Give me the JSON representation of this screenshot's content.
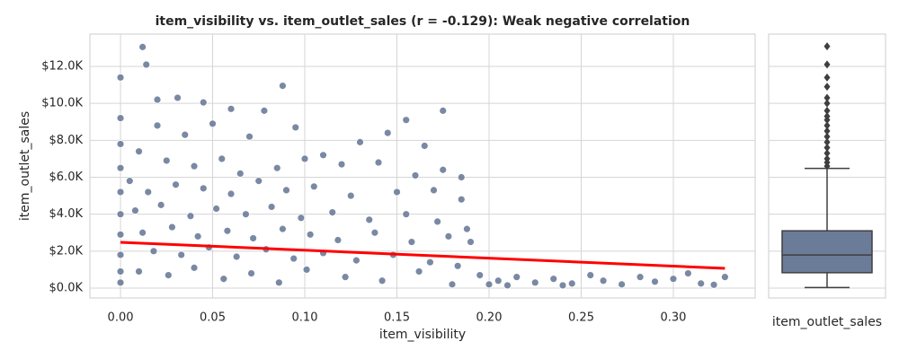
{
  "chart_data": [
    {
      "type": "scatter",
      "title": "item_visibility vs. item_outlet_sales (r = -0.129): Weak negative correlation",
      "x_label": "item_visibility",
      "y_label": "item_outlet_sales",
      "xlim": [
        -0.0166,
        0.3444
      ],
      "ylim": [
        -534,
        13748
      ],
      "xticks": [
        {
          "value": 0,
          "label": "0.00"
        },
        0.05,
        {
          "value": 0.1,
          "label": "0.10"
        },
        0.15,
        {
          "value": 0.2,
          "label": "0.20"
        },
        0.25,
        {
          "value": 0.3,
          "label": "0.30"
        }
      ],
      "yticks": [
        {
          "value": 0,
          "label": "$0.0K"
        },
        {
          "value": 2000,
          "label": "$2.0K"
        },
        {
          "value": 4000,
          "label": "$4.0K"
        },
        {
          "value": 6000,
          "label": "$6.0K"
        },
        {
          "value": 8000,
          "label": "$8.0K"
        },
        {
          "value": 10000,
          "label": "$10.0K"
        },
        {
          "value": 12000,
          "label": "$12.0K"
        }
      ],
      "grid": true,
      "color": "#6b7c99",
      "points": {
        "x": [
          0,
          0,
          0,
          0,
          0,
          0,
          0,
          0,
          0,
          0,
          0.012,
          0.014,
          0.02,
          0.031,
          0.045,
          0.088,
          0.175,
          0.155,
          0.06,
          0.078,
          0.02,
          0.035,
          0.05,
          0.07,
          0.095,
          0.11,
          0.13,
          0.145,
          0.165,
          0.185,
          0.01,
          0.025,
          0.04,
          0.055,
          0.065,
          0.085,
          0.1,
          0.12,
          0.14,
          0.16,
          0.175,
          0.005,
          0.015,
          0.03,
          0.045,
          0.06,
          0.075,
          0.09,
          0.105,
          0.125,
          0.15,
          0.17,
          0.185,
          0.008,
          0.022,
          0.038,
          0.052,
          0.068,
          0.082,
          0.098,
          0.115,
          0.135,
          0.155,
          0.172,
          0.188,
          0.012,
          0.028,
          0.042,
          0.058,
          0.072,
          0.088,
          0.103,
          0.118,
          0.138,
          0.158,
          0.178,
          0.018,
          0.033,
          0.048,
          0.063,
          0.079,
          0.094,
          0.11,
          0.128,
          0.148,
          0.168,
          0.183,
          0.01,
          0.026,
          0.04,
          0.056,
          0.071,
          0.086,
          0.101,
          0.122,
          0.142,
          0.162,
          0.18,
          0.195,
          0.205,
          0.215,
          0.225,
          0.235,
          0.245,
          0.255,
          0.262,
          0.272,
          0.282,
          0.29,
          0.3,
          0.308,
          0.315,
          0.322,
          0.328,
          0.19,
          0.2,
          0.21,
          0.24
        ],
        "y": [
          11400,
          9200,
          7800,
          6500,
          5200,
          4000,
          2900,
          1800,
          900,
          300,
          13050,
          12100,
          10200,
          10300,
          10050,
          10950,
          9600,
          9100,
          9700,
          9600,
          8800,
          8300,
          8900,
          8200,
          8700,
          7200,
          7900,
          8400,
          7700,
          6000,
          7400,
          6900,
          6600,
          7000,
          6200,
          6500,
          7000,
          6700,
          6800,
          6100,
          6400,
          5800,
          5200,
          5600,
          5400,
          5100,
          5800,
          5300,
          5500,
          5000,
          5200,
          5300,
          4800,
          4200,
          4500,
          3900,
          4300,
          4000,
          4400,
          3800,
          4100,
          3700,
          4000,
          3600,
          3200,
          3000,
          3300,
          2800,
          3100,
          2700,
          3200,
          2900,
          2600,
          3000,
          2500,
          2800,
          2000,
          1800,
          2200,
          1700,
          2100,
          1600,
          1900,
          1500,
          1800,
          1400,
          1200,
          900,
          700,
          1100,
          500,
          800,
          300,
          1000,
          600,
          400,
          900,
          200,
          700,
          400,
          600,
          300,
          500,
          250,
          700,
          400,
          200,
          600,
          350,
          500,
          800,
          250,
          180,
          600,
          2500,
          200,
          150,
          150
        ]
      },
      "regression": {
        "x": [
          0,
          0.328
        ],
        "y": [
          2480,
          1070
        ],
        "color": "#ff0000"
      }
    },
    {
      "type": "box",
      "x_label": "item_outlet_sales",
      "color": "#6b7c99",
      "ylim": [
        -534,
        13748
      ],
      "min": 33,
      "q1": 834,
      "median": 1794,
      "q3": 3101,
      "max": 6478,
      "outliers": [
        6600,
        6800,
        7000,
        7300,
        7600,
        7900,
        8200,
        8500,
        8800,
        9100,
        9300,
        9600,
        10000,
        10300,
        10900,
        11400,
        12100,
        13087
      ]
    }
  ]
}
